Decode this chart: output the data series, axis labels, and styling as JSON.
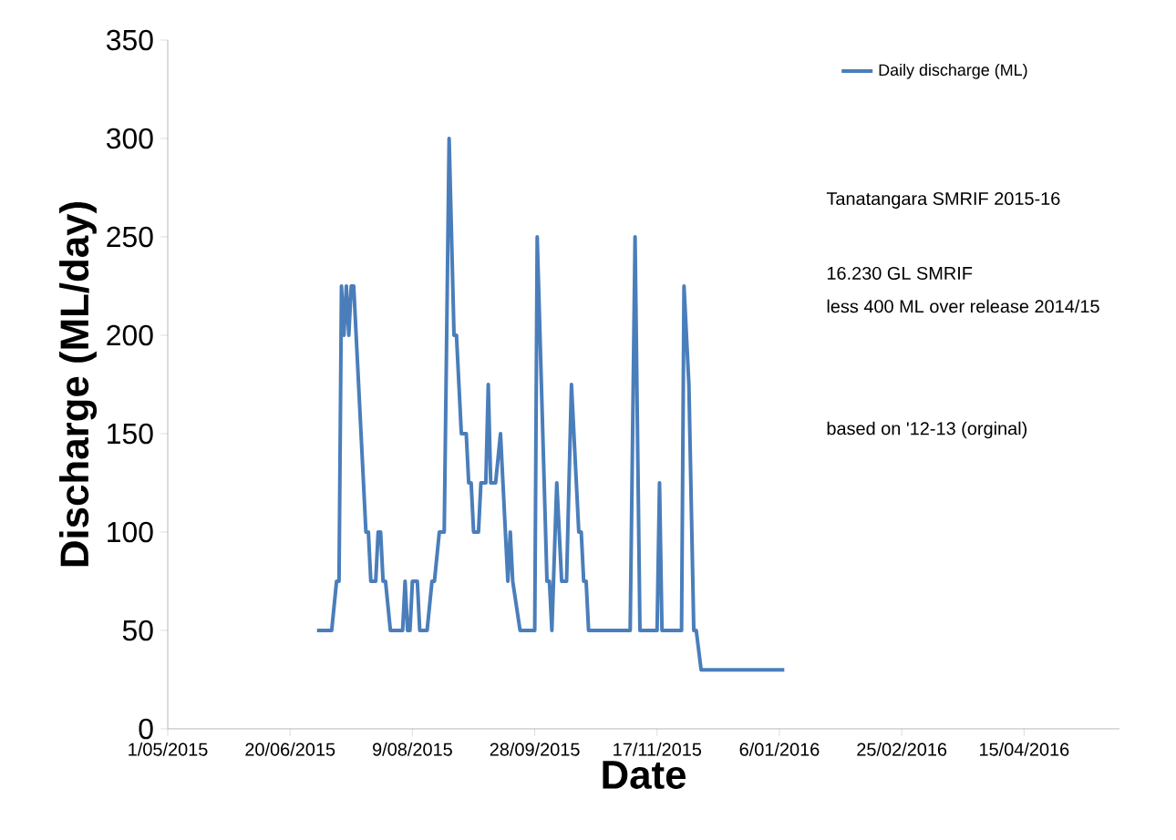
{
  "chart_data": {
    "type": "line",
    "xlabel": "Date",
    "ylabel": "Discharge (ML/day)",
    "x": [
      "2015-07-01",
      "2015-07-07",
      "2015-07-09",
      "2015-07-10",
      "2015-07-11",
      "2015-07-12",
      "2015-07-13",
      "2015-07-14",
      "2015-07-15",
      "2015-07-16",
      "2015-07-21",
      "2015-07-22",
      "2015-07-23",
      "2015-07-25",
      "2015-07-26",
      "2015-07-27",
      "2015-07-28",
      "2015-07-29",
      "2015-07-31",
      "2015-08-05",
      "2015-08-06",
      "2015-08-07",
      "2015-08-08",
      "2015-08-09",
      "2015-08-11",
      "2015-08-12",
      "2015-08-15",
      "2015-08-17",
      "2015-08-18",
      "2015-08-20",
      "2015-08-22",
      "2015-08-24",
      "2015-08-26",
      "2015-08-27",
      "2015-08-29",
      "2015-08-31",
      "2015-09-01",
      "2015-09-02",
      "2015-09-03",
      "2015-09-05",
      "2015-09-06",
      "2015-09-08",
      "2015-09-09",
      "2015-09-10",
      "2015-09-12",
      "2015-09-14",
      "2015-09-15",
      "2015-09-16",
      "2015-09-17",
      "2015-09-18",
      "2015-09-19",
      "2015-09-22",
      "2015-09-28",
      "2015-09-29",
      "2015-10-03",
      "2015-10-04",
      "2015-10-05",
      "2015-10-07",
      "2015-10-09",
      "2015-10-11",
      "2015-10-13",
      "2015-10-16",
      "2015-10-17",
      "2015-10-18",
      "2015-10-19",
      "2015-10-20",
      "2015-11-06",
      "2015-11-08",
      "2015-11-10",
      "2015-11-17",
      "2015-11-18",
      "2015-11-19",
      "2015-11-27",
      "2015-11-28",
      "2015-11-30",
      "2015-12-02",
      "2015-12-03",
      "2015-12-05",
      "2016-01-08"
    ],
    "series": [
      {
        "name": "Daily discharge (ML)",
        "color": "#4a7ebb",
        "values": [
          50,
          50,
          75,
          75,
          225,
          200,
          225,
          200,
          225,
          225,
          100,
          100,
          75,
          75,
          100,
          100,
          75,
          75,
          50,
          50,
          75,
          50,
          50,
          75,
          75,
          50,
          50,
          75,
          75,
          100,
          100,
          300,
          200,
          200,
          150,
          150,
          125,
          125,
          100,
          100,
          125,
          125,
          175,
          125,
          125,
          150,
          125,
          100,
          75,
          100,
          75,
          50,
          50,
          250,
          75,
          75,
          50,
          125,
          75,
          75,
          175,
          100,
          100,
          75,
          75,
          50,
          50,
          250,
          50,
          50,
          125,
          50,
          50,
          225,
          175,
          50,
          50,
          30,
          30
        ]
      }
    ],
    "xlim": [
      "2015-05-01",
      "2016-05-24"
    ],
    "xticks": [
      {
        "value": "2015-05-01",
        "label": "1/05/2015"
      },
      {
        "value": "2015-06-20",
        "label": "20/06/2015"
      },
      {
        "value": "2015-08-09",
        "label": "9/08/2015"
      },
      {
        "value": "2015-09-28",
        "label": "28/09/2015"
      },
      {
        "value": "2015-11-17",
        "label": "17/11/2015"
      },
      {
        "value": "2016-01-06",
        "label": "6/01/2016"
      },
      {
        "value": "2016-02-25",
        "label": "25/02/2016"
      },
      {
        "value": "2016-04-15",
        "label": "15/04/2016"
      }
    ],
    "ylim": [
      0,
      350
    ],
    "yticks": [
      0,
      50,
      100,
      150,
      200,
      250,
      300,
      350
    ],
    "legend": "top right",
    "grid": false,
    "marker": "none",
    "line_style": "solid",
    "annotations": [
      "Tanatangara SMRIF 2015-16",
      "16.230 GL SMRIF",
      "less 400 ML over release 2014/15",
      "based on '12-13 (orginal)"
    ]
  }
}
